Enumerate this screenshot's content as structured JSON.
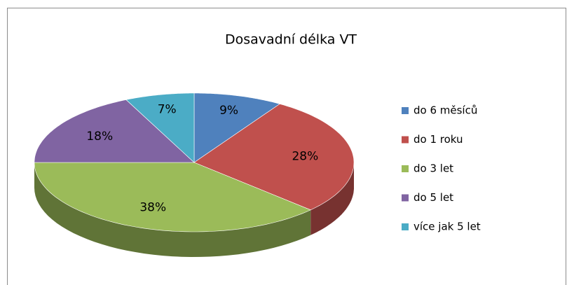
{
  "chart_data": {
    "type": "pie",
    "title": "Dosavadní délka VT",
    "categories": [
      "do 6 měsíců",
      "do 1 roku",
      "do 3 let",
      "do 5 let",
      "více jak 5 let"
    ],
    "values": [
      9,
      28,
      38,
      18,
      7
    ],
    "value_labels": [
      "9%",
      "28%",
      "38%",
      "18%",
      "7%"
    ],
    "colors": [
      "#4f81bd",
      "#c0504d",
      "#9bbb59",
      "#8064a2",
      "#4bacc6"
    ],
    "legend": "right"
  }
}
